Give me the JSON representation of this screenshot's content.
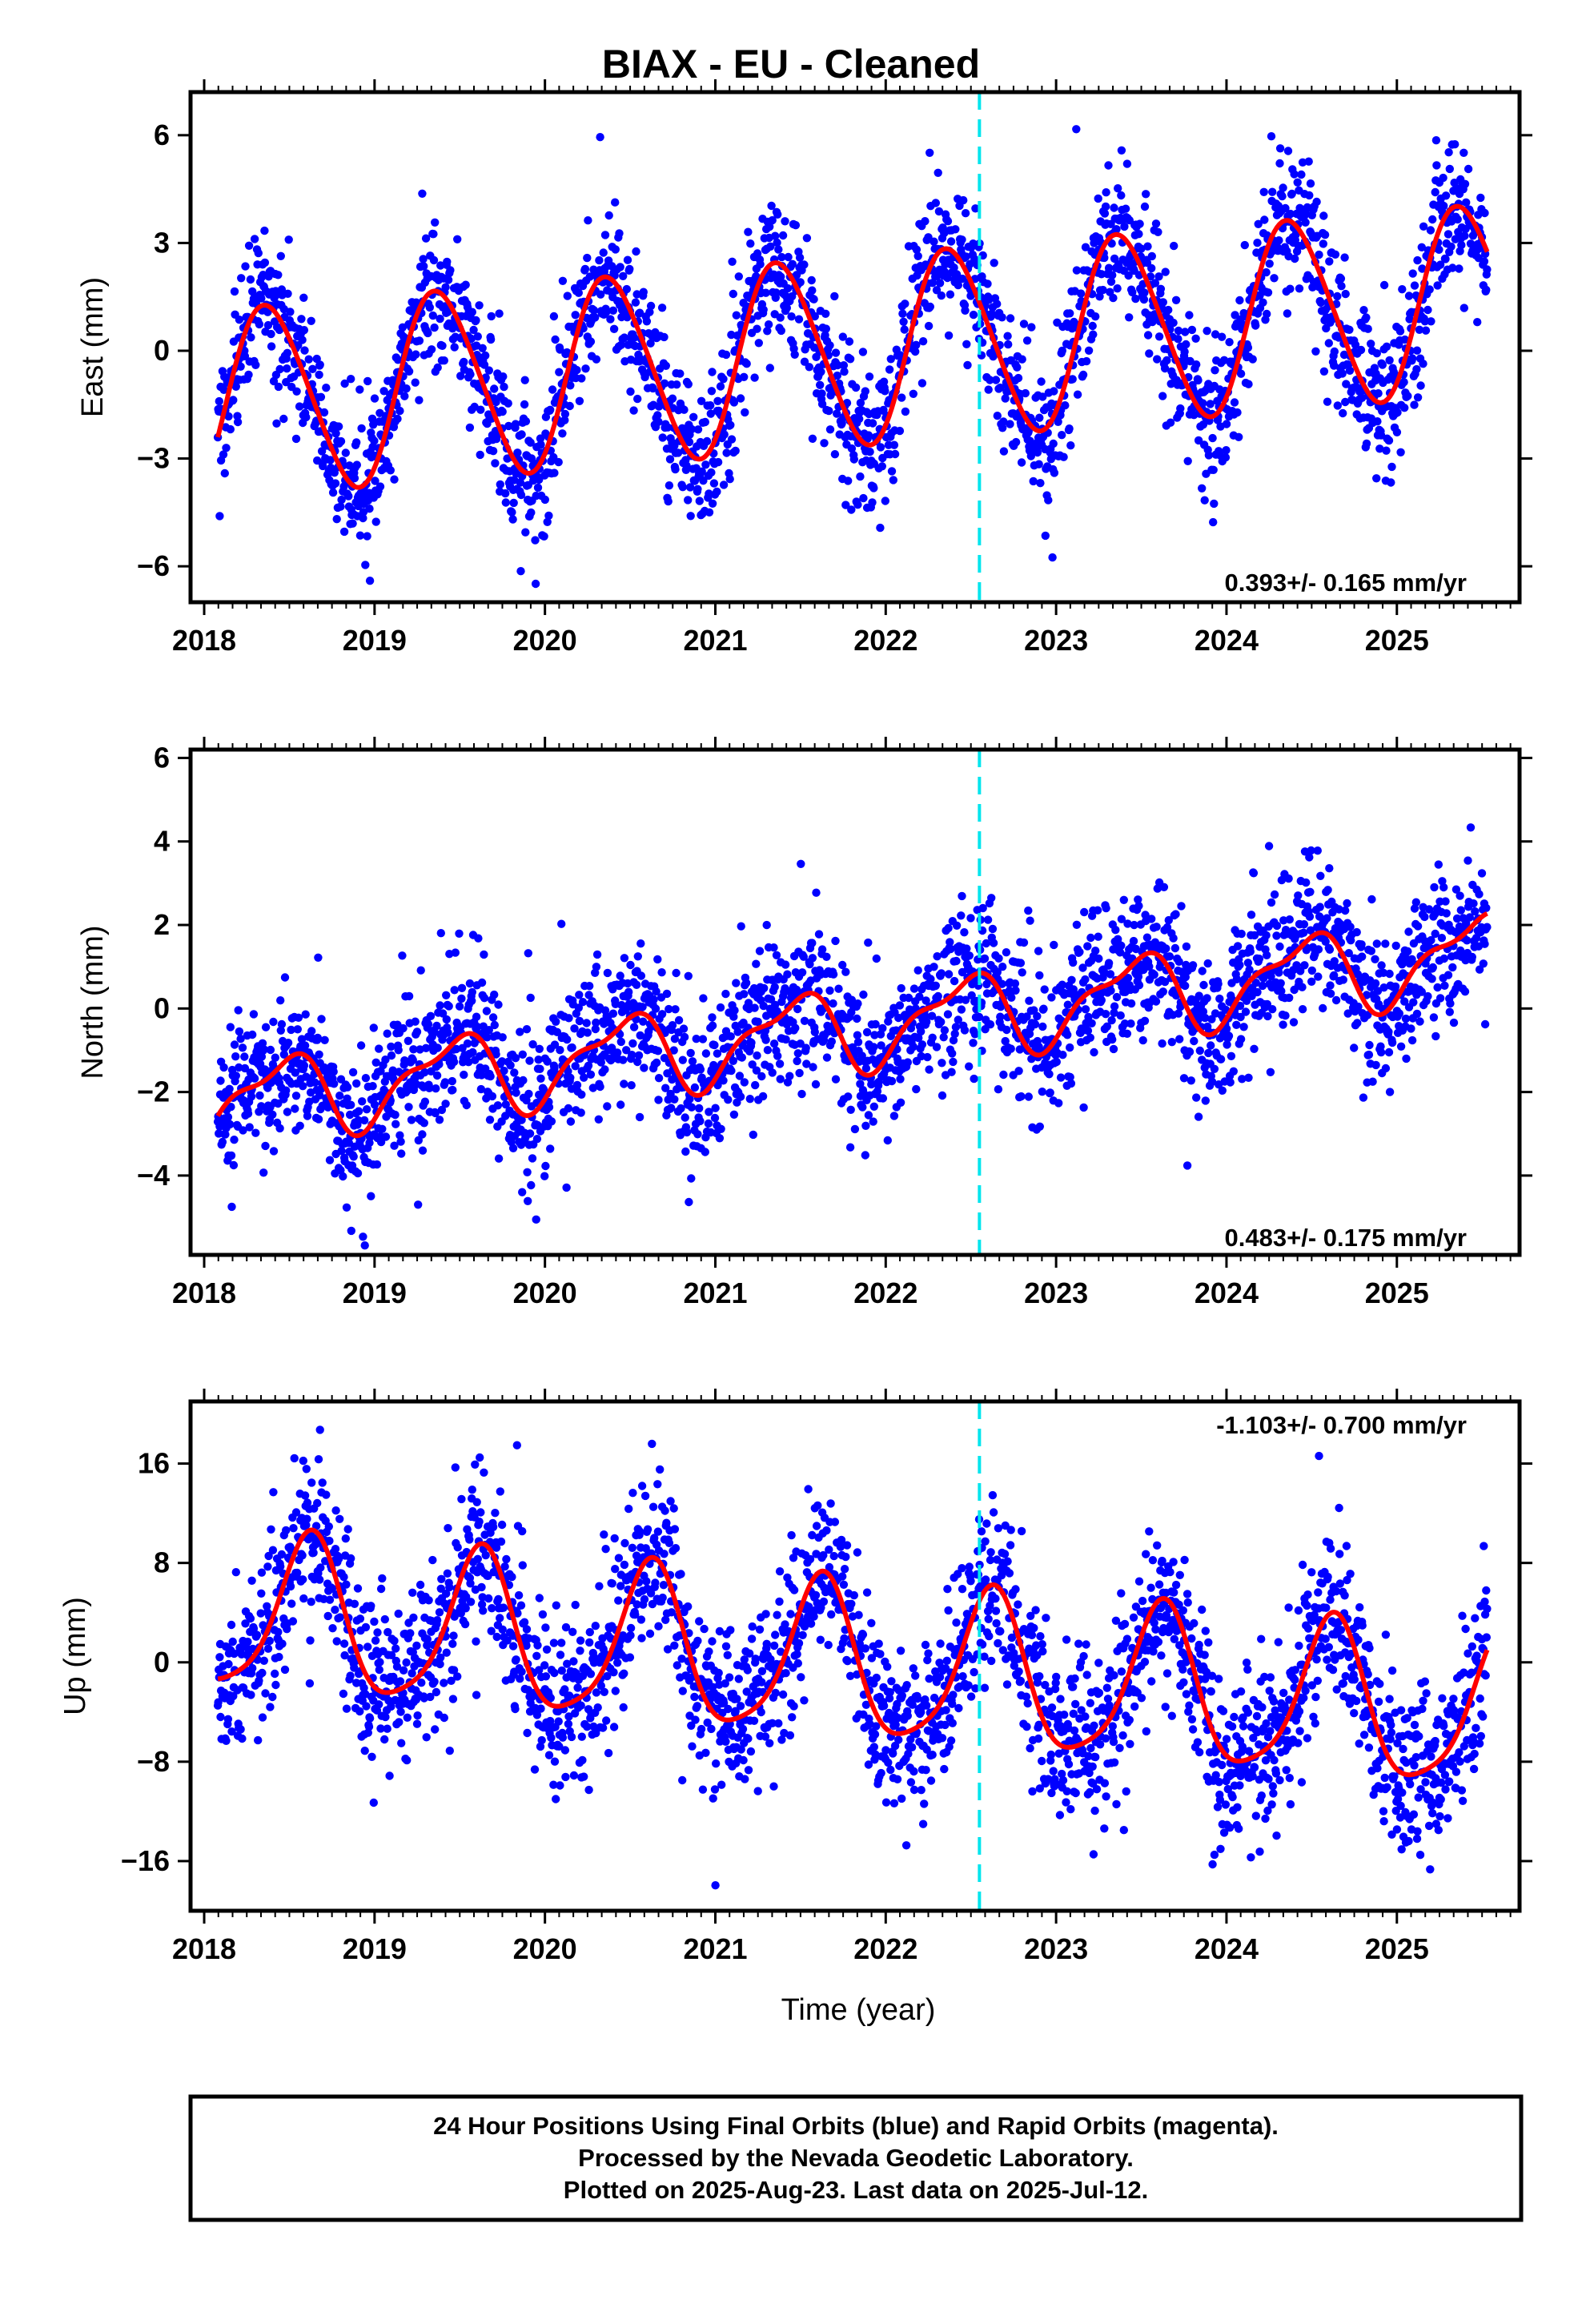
{
  "title": "BIAX  - EU - Cleaned",
  "xlabel": "Time (year)",
  "x_ticks": [
    "2018",
    "2019",
    "2020",
    "2021",
    "2022",
    "2023",
    "2024",
    "2025"
  ],
  "equipment_change_year": 2022.55,
  "colors": {
    "points": "#0000ff",
    "fit": "#ff0000",
    "equipment_change": "#00e5ee",
    "frame": "#000000"
  },
  "chart_data": [
    {
      "type": "scatter",
      "component": "east",
      "ylabel": "East (mm)",
      "rate_text": "0.393+/- 0.165 mm/yr",
      "xlim": [
        2017.92,
        2025.72
      ],
      "ylim": [
        -7.0,
        7.2
      ],
      "y_ticks": [
        -6,
        -3,
        0,
        3,
        6
      ],
      "y_tick_labels": [
        "−6",
        "−3",
        "0",
        "3",
        "6"
      ],
      "series": [
        {
          "kind": "model",
          "trend_mm_per_yr": 0.393,
          "offset_mm_at_2018": -1.5,
          "annual_amplitude_mm": 2.6,
          "annual_peak_year_fraction": 0.38,
          "semiannual_amplitude_mm": 0.25,
          "semiannual_peak_year_fraction": 0.25,
          "scatter_sigma_mm": 1.0
        }
      ]
    },
    {
      "type": "scatter",
      "component": "north",
      "ylabel": "North (mm)",
      "rate_text": "0.483+/- 0.175 mm/yr",
      "xlim": [
        2017.92,
        2025.72
      ],
      "ylim": [
        -5.9,
        6.2
      ],
      "y_ticks": [
        -4,
        -2,
        0,
        2,
        4,
        6
      ],
      "y_tick_labels": [
        "−4",
        "−2",
        "0",
        "2",
        "4",
        "6"
      ],
      "series": [
        {
          "kind": "model",
          "trend_mm_per_yr": 0.483,
          "offset_mm_at_2018": -2.3,
          "annual_amplitude_mm": 0.9,
          "annual_peak_year_fraction": 0.45,
          "semiannual_amplitude_mm": 0.35,
          "semiannual_peak_year_fraction": 0.12,
          "scatter_sigma_mm": 0.9
        }
      ]
    },
    {
      "type": "scatter",
      "component": "up",
      "ylabel": "Up (mm)",
      "rate_text": "-1.103+/- 0.700 mm/yr",
      "xlim": [
        2017.92,
        2025.72
      ],
      "ylim": [
        -20.0,
        21.0
      ],
      "y_ticks": [
        -16,
        -8,
        0,
        8,
        16
      ],
      "y_tick_labels": [
        "−16",
        "−8",
        "0",
        "8",
        "16"
      ],
      "series": [
        {
          "kind": "model",
          "trend_mm_per_yr": -1.103,
          "offset_mm_at_2018": 4.0,
          "annual_amplitude_mm": 6.2,
          "annual_peak_year_fraction": 0.62,
          "semiannual_amplitude_mm": 1.2,
          "semiannual_peak_year_fraction": 0.15,
          "scatter_sigma_mm": 3.3
        }
      ]
    }
  ],
  "footer": {
    "line1": "24 Hour Positions Using Final Orbits (blue) and Rapid Orbits (magenta).",
    "line2": "Processed by the Nevada Geodetic Laboratory.",
    "line3": "Plotted on 2025-Aug-23. Last data on 2025-Jul-12."
  }
}
